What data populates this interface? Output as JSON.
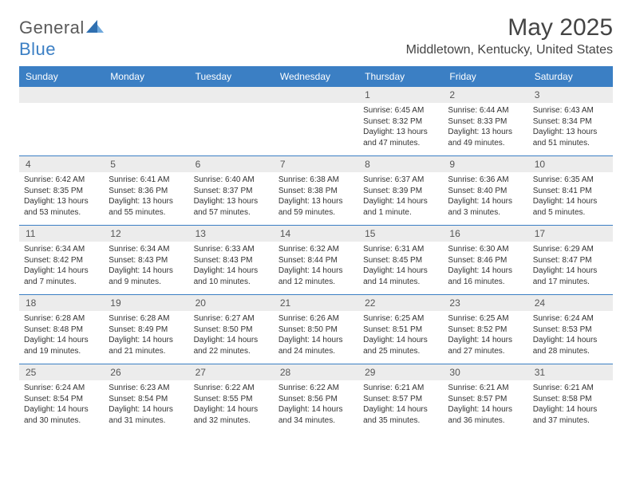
{
  "brand": {
    "part1": "General",
    "part2": "Blue"
  },
  "title": "May 2025",
  "location": "Middletown, Kentucky, United States",
  "colors": {
    "header_bg": "#3b7fc4",
    "daynum_bg": "#ececec",
    "rule": "#3b7fc4",
    "text": "#333333",
    "title": "#444444"
  },
  "dow": [
    "Sunday",
    "Monday",
    "Tuesday",
    "Wednesday",
    "Thursday",
    "Friday",
    "Saturday"
  ],
  "weeks": [
    [
      null,
      null,
      null,
      null,
      {
        "n": "1",
        "sr": "6:45 AM",
        "ss": "8:32 PM",
        "dl": "13 hours and 47 minutes."
      },
      {
        "n": "2",
        "sr": "6:44 AM",
        "ss": "8:33 PM",
        "dl": "13 hours and 49 minutes."
      },
      {
        "n": "3",
        "sr": "6:43 AM",
        "ss": "8:34 PM",
        "dl": "13 hours and 51 minutes."
      }
    ],
    [
      {
        "n": "4",
        "sr": "6:42 AM",
        "ss": "8:35 PM",
        "dl": "13 hours and 53 minutes."
      },
      {
        "n": "5",
        "sr": "6:41 AM",
        "ss": "8:36 PM",
        "dl": "13 hours and 55 minutes."
      },
      {
        "n": "6",
        "sr": "6:40 AM",
        "ss": "8:37 PM",
        "dl": "13 hours and 57 minutes."
      },
      {
        "n": "7",
        "sr": "6:38 AM",
        "ss": "8:38 PM",
        "dl": "13 hours and 59 minutes."
      },
      {
        "n": "8",
        "sr": "6:37 AM",
        "ss": "8:39 PM",
        "dl": "14 hours and 1 minute."
      },
      {
        "n": "9",
        "sr": "6:36 AM",
        "ss": "8:40 PM",
        "dl": "14 hours and 3 minutes."
      },
      {
        "n": "10",
        "sr": "6:35 AM",
        "ss": "8:41 PM",
        "dl": "14 hours and 5 minutes."
      }
    ],
    [
      {
        "n": "11",
        "sr": "6:34 AM",
        "ss": "8:42 PM",
        "dl": "14 hours and 7 minutes."
      },
      {
        "n": "12",
        "sr": "6:34 AM",
        "ss": "8:43 PM",
        "dl": "14 hours and 9 minutes."
      },
      {
        "n": "13",
        "sr": "6:33 AM",
        "ss": "8:43 PM",
        "dl": "14 hours and 10 minutes."
      },
      {
        "n": "14",
        "sr": "6:32 AM",
        "ss": "8:44 PM",
        "dl": "14 hours and 12 minutes."
      },
      {
        "n": "15",
        "sr": "6:31 AM",
        "ss": "8:45 PM",
        "dl": "14 hours and 14 minutes."
      },
      {
        "n": "16",
        "sr": "6:30 AM",
        "ss": "8:46 PM",
        "dl": "14 hours and 16 minutes."
      },
      {
        "n": "17",
        "sr": "6:29 AM",
        "ss": "8:47 PM",
        "dl": "14 hours and 17 minutes."
      }
    ],
    [
      {
        "n": "18",
        "sr": "6:28 AM",
        "ss": "8:48 PM",
        "dl": "14 hours and 19 minutes."
      },
      {
        "n": "19",
        "sr": "6:28 AM",
        "ss": "8:49 PM",
        "dl": "14 hours and 21 minutes."
      },
      {
        "n": "20",
        "sr": "6:27 AM",
        "ss": "8:50 PM",
        "dl": "14 hours and 22 minutes."
      },
      {
        "n": "21",
        "sr": "6:26 AM",
        "ss": "8:50 PM",
        "dl": "14 hours and 24 minutes."
      },
      {
        "n": "22",
        "sr": "6:25 AM",
        "ss": "8:51 PM",
        "dl": "14 hours and 25 minutes."
      },
      {
        "n": "23",
        "sr": "6:25 AM",
        "ss": "8:52 PM",
        "dl": "14 hours and 27 minutes."
      },
      {
        "n": "24",
        "sr": "6:24 AM",
        "ss": "8:53 PM",
        "dl": "14 hours and 28 minutes."
      }
    ],
    [
      {
        "n": "25",
        "sr": "6:24 AM",
        "ss": "8:54 PM",
        "dl": "14 hours and 30 minutes."
      },
      {
        "n": "26",
        "sr": "6:23 AM",
        "ss": "8:54 PM",
        "dl": "14 hours and 31 minutes."
      },
      {
        "n": "27",
        "sr": "6:22 AM",
        "ss": "8:55 PM",
        "dl": "14 hours and 32 minutes."
      },
      {
        "n": "28",
        "sr": "6:22 AM",
        "ss": "8:56 PM",
        "dl": "14 hours and 34 minutes."
      },
      {
        "n": "29",
        "sr": "6:21 AM",
        "ss": "8:57 PM",
        "dl": "14 hours and 35 minutes."
      },
      {
        "n": "30",
        "sr": "6:21 AM",
        "ss": "8:57 PM",
        "dl": "14 hours and 36 minutes."
      },
      {
        "n": "31",
        "sr": "6:21 AM",
        "ss": "8:58 PM",
        "dl": "14 hours and 37 minutes."
      }
    ]
  ],
  "labels": {
    "sunrise": "Sunrise:",
    "sunset": "Sunset:",
    "daylight": "Daylight:"
  }
}
